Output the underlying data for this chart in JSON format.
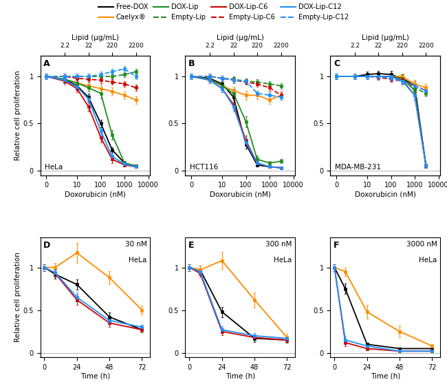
{
  "legend_entries": [
    {
      "label": "Free-DOX",
      "color": "#000000",
      "ls": "-",
      "lw": 1.5
    },
    {
      "label": "Caelyx®",
      "color": "#FF8C00",
      "ls": "-",
      "lw": 1.5
    },
    {
      "label": "DOX-Lip",
      "color": "#228B22",
      "ls": "-",
      "lw": 1.5
    },
    {
      "label": "Empty-Lip",
      "color": "#228B22",
      "ls": "--",
      "lw": 1.5
    },
    {
      "label": "DOX-Lip-C6",
      "color": "#CC0000",
      "ls": "-",
      "lw": 1.5
    },
    {
      "label": "Empty-Lip-C6",
      "color": "#CC0000",
      "ls": "--",
      "lw": 1.5
    },
    {
      "label": "DOX-Lip-C12",
      "color": "#1E90FF",
      "ls": "-",
      "lw": 1.5
    },
    {
      "label": "Empty-Lip-C12",
      "color": "#1E90FF",
      "ls": "--",
      "lw": 1.5
    }
  ],
  "top_panels": {
    "A": {
      "title": "HeLa",
      "Free_DOX": [
        1.0,
        0.97,
        0.9,
        0.78,
        0.5,
        0.22,
        0.08,
        0.05
      ],
      "Caelyx": [
        1.0,
        0.97,
        0.93,
        0.9,
        0.87,
        0.84,
        0.8,
        0.75
      ],
      "DOX_Lip": [
        1.0,
        0.97,
        0.93,
        0.88,
        0.82,
        0.38,
        0.08,
        0.05
      ],
      "Empty_Lip": [
        1.0,
        1.0,
        1.0,
        1.0,
        1.0,
        1.0,
        1.02,
        1.05
      ],
      "DOX_Lip_C6": [
        1.0,
        0.95,
        0.87,
        0.68,
        0.35,
        0.12,
        0.06,
        0.04
      ],
      "Empty_Lip_C6": [
        1.0,
        1.0,
        0.98,
        0.97,
        0.96,
        0.94,
        0.92,
        0.88
      ],
      "DOX_Lip_C12": [
        1.0,
        0.96,
        0.89,
        0.76,
        0.42,
        0.15,
        0.07,
        0.04
      ],
      "Empty_Lip_C12": [
        1.0,
        1.0,
        1.0,
        1.0,
        1.02,
        1.05,
        1.08,
        1.0
      ],
      "err_Free_DOX": [
        0.03,
        0.03,
        0.03,
        0.04,
        0.04,
        0.03,
        0.02,
        0.01
      ],
      "err_Caelyx": [
        0.03,
        0.03,
        0.03,
        0.04,
        0.04,
        0.04,
        0.04,
        0.04
      ],
      "err_DOX_Lip": [
        0.03,
        0.03,
        0.03,
        0.04,
        0.05,
        0.05,
        0.02,
        0.01
      ],
      "err_Empty_Lip": [
        0.03,
        0.03,
        0.03,
        0.03,
        0.03,
        0.03,
        0.03,
        0.03
      ],
      "err_DOX_Lip_C6": [
        0.03,
        0.03,
        0.04,
        0.05,
        0.05,
        0.04,
        0.02,
        0.01
      ],
      "err_Empty_Lip_C6": [
        0.03,
        0.03,
        0.03,
        0.03,
        0.03,
        0.03,
        0.03,
        0.03
      ],
      "err_DOX_Lip_C12": [
        0.03,
        0.03,
        0.03,
        0.04,
        0.05,
        0.04,
        0.02,
        0.01
      ],
      "err_Empty_Lip_C12": [
        0.03,
        0.03,
        0.03,
        0.03,
        0.03,
        0.03,
        0.03,
        0.03
      ]
    },
    "B": {
      "title": "HCT116",
      "Free_DOX": [
        1.0,
        0.98,
        0.92,
        0.78,
        0.28,
        0.06,
        0.04,
        0.03
      ],
      "Caelyx": [
        1.0,
        0.97,
        0.9,
        0.85,
        0.8,
        0.8,
        0.75,
        0.8
      ],
      "DOX_Lip": [
        1.0,
        0.97,
        0.9,
        0.82,
        0.52,
        0.12,
        0.08,
        0.1
      ],
      "Empty_Lip": [
        1.0,
        1.0,
        0.98,
        0.97,
        0.95,
        0.94,
        0.92,
        0.9
      ],
      "DOX_Lip_C6": [
        1.0,
        0.96,
        0.87,
        0.7,
        0.32,
        0.08,
        0.04,
        0.03
      ],
      "Empty_Lip_C6": [
        1.0,
        1.0,
        0.98,
        0.96,
        0.94,
        0.92,
        0.88,
        0.8
      ],
      "DOX_Lip_C12": [
        1.0,
        0.96,
        0.87,
        0.68,
        0.3,
        0.08,
        0.04,
        0.03
      ],
      "Empty_Lip_C12": [
        1.0,
        1.0,
        0.98,
        0.96,
        0.95,
        0.82,
        0.8,
        0.78
      ],
      "err_Free_DOX": [
        0.03,
        0.03,
        0.04,
        0.05,
        0.05,
        0.02,
        0.01,
        0.01
      ],
      "err_Caelyx": [
        0.03,
        0.03,
        0.04,
        0.04,
        0.05,
        0.04,
        0.04,
        0.05
      ],
      "err_DOX_Lip": [
        0.03,
        0.03,
        0.04,
        0.05,
        0.06,
        0.04,
        0.02,
        0.02
      ],
      "err_Empty_Lip": [
        0.03,
        0.03,
        0.03,
        0.03,
        0.03,
        0.03,
        0.03,
        0.03
      ],
      "err_DOX_Lip_C6": [
        0.03,
        0.03,
        0.04,
        0.05,
        0.05,
        0.02,
        0.01,
        0.01
      ],
      "err_Empty_Lip_C6": [
        0.03,
        0.03,
        0.03,
        0.03,
        0.03,
        0.03,
        0.03,
        0.03
      ],
      "err_DOX_Lip_C12": [
        0.03,
        0.03,
        0.04,
        0.05,
        0.05,
        0.02,
        0.01,
        0.01
      ],
      "err_Empty_Lip_C12": [
        0.03,
        0.03,
        0.03,
        0.03,
        0.03,
        0.03,
        0.03,
        0.03
      ]
    },
    "C": {
      "title": "MDA-MB-231",
      "Free_DOX": [
        1.0,
        1.0,
        1.02,
        1.03,
        1.02,
        0.98,
        0.9,
        0.05
      ],
      "Caelyx": [
        1.0,
        1.0,
        1.0,
        1.0,
        1.0,
        1.0,
        0.92,
        0.88
      ],
      "DOX_Lip": [
        1.0,
        1.0,
        1.0,
        1.0,
        1.0,
        0.98,
        0.85,
        0.05
      ],
      "Empty_Lip": [
        1.0,
        1.0,
        1.0,
        1.0,
        0.98,
        0.95,
        0.88,
        0.82
      ],
      "DOX_Lip_C6": [
        1.0,
        1.0,
        1.0,
        1.0,
        1.0,
        0.96,
        0.8,
        0.05
      ],
      "Empty_Lip_C6": [
        1.0,
        1.0,
        1.0,
        0.99,
        0.97,
        0.95,
        0.9,
        0.85
      ],
      "DOX_Lip_C12": [
        1.0,
        1.0,
        1.0,
        1.0,
        1.0,
        0.95,
        0.8,
        0.05
      ],
      "Empty_Lip_C12": [
        1.0,
        1.0,
        1.0,
        1.0,
        0.98,
        0.95,
        0.9,
        0.85
      ],
      "err_Free_DOX": [
        0.03,
        0.03,
        0.03,
        0.03,
        0.04,
        0.04,
        0.05,
        0.02
      ],
      "err_Caelyx": [
        0.03,
        0.03,
        0.03,
        0.03,
        0.03,
        0.03,
        0.04,
        0.04
      ],
      "err_DOX_Lip": [
        0.03,
        0.03,
        0.03,
        0.03,
        0.03,
        0.04,
        0.05,
        0.02
      ],
      "err_Empty_Lip": [
        0.03,
        0.03,
        0.03,
        0.03,
        0.03,
        0.03,
        0.03,
        0.03
      ],
      "err_DOX_Lip_C6": [
        0.03,
        0.03,
        0.03,
        0.03,
        0.03,
        0.04,
        0.05,
        0.02
      ],
      "err_Empty_Lip_C6": [
        0.03,
        0.03,
        0.03,
        0.03,
        0.03,
        0.03,
        0.03,
        0.03
      ],
      "err_DOX_Lip_C12": [
        0.03,
        0.03,
        0.03,
        0.03,
        0.03,
        0.04,
        0.05,
        0.02
      ],
      "err_Empty_Lip_C12": [
        0.03,
        0.03,
        0.03,
        0.03,
        0.03,
        0.03,
        0.03,
        0.03
      ]
    }
  },
  "bottom_panels": {
    "D": {
      "dose": "30 nM",
      "title": "HeLa",
      "time_x": [
        0,
        8,
        24,
        48,
        72
      ],
      "Free_DOX": [
        1.0,
        0.92,
        0.8,
        0.42,
        0.27
      ],
      "Caelyx": [
        1.0,
        1.0,
        1.17,
        0.88,
        0.5
      ],
      "DOX_Lip_C6": [
        1.0,
        0.93,
        0.62,
        0.35,
        0.27
      ],
      "DOX_Lip_C12": [
        1.0,
        0.94,
        0.65,
        0.38,
        0.3
      ],
      "err_Free_DOX": [
        0.04,
        0.05,
        0.06,
        0.05,
        0.03
      ],
      "err_Caelyx": [
        0.04,
        0.05,
        0.12,
        0.08,
        0.05
      ],
      "err_DOX_Lip_C6": [
        0.04,
        0.05,
        0.06,
        0.05,
        0.03
      ],
      "err_DOX_Lip_C12": [
        0.04,
        0.05,
        0.06,
        0.05,
        0.03
      ]
    },
    "E": {
      "dose": "300 nM",
      "title": "HeLa",
      "time_x": [
        0,
        8,
        24,
        48,
        72
      ],
      "Free_DOX": [
        1.0,
        0.97,
        0.48,
        0.17,
        0.15
      ],
      "Caelyx": [
        1.0,
        0.97,
        1.08,
        0.62,
        0.18
      ],
      "DOX_Lip_C6": [
        1.0,
        0.93,
        0.25,
        0.18,
        0.15
      ],
      "DOX_Lip_C12": [
        1.0,
        0.95,
        0.27,
        0.2,
        0.17
      ],
      "err_Free_DOX": [
        0.04,
        0.05,
        0.06,
        0.04,
        0.03
      ],
      "err_Caelyx": [
        0.04,
        0.05,
        0.1,
        0.09,
        0.04
      ],
      "err_DOX_Lip_C6": [
        0.04,
        0.04,
        0.04,
        0.03,
        0.02
      ],
      "err_DOX_Lip_C12": [
        0.04,
        0.04,
        0.04,
        0.03,
        0.02
      ]
    },
    "F": {
      "dose": "3000 nM",
      "title": "HeLa",
      "time_x": [
        0,
        8,
        24,
        48,
        72
      ],
      "Free_DOX": [
        1.0,
        0.75,
        0.1,
        0.05,
        0.05
      ],
      "Caelyx": [
        1.0,
        0.95,
        0.48,
        0.25,
        0.08
      ],
      "DOX_Lip_C6": [
        1.0,
        0.12,
        0.05,
        0.02,
        0.02
      ],
      "DOX_Lip_C12": [
        1.0,
        0.15,
        0.08,
        0.02,
        0.02
      ],
      "err_Free_DOX": [
        0.04,
        0.06,
        0.02,
        0.01,
        0.01
      ],
      "err_Caelyx": [
        0.04,
        0.05,
        0.08,
        0.07,
        0.02
      ],
      "err_DOX_Lip_C6": [
        0.04,
        0.04,
        0.02,
        0.01,
        0.01
      ],
      "err_DOX_Lip_C12": [
        0.04,
        0.04,
        0.02,
        0.01,
        0.01
      ]
    }
  },
  "dox_x_plot": [
    0.5,
    3,
    10,
    30,
    100,
    300,
    1000,
    3000
  ],
  "colors": {
    "Free_DOX": "#000000",
    "Caelyx": "#FF8C00",
    "DOX_Lip": "#228B22",
    "Empty_Lip": "#228B22",
    "DOX_Lip_C6": "#CC0000",
    "Empty_Lip_C6": "#CC0000",
    "DOX_Lip_C12": "#1E90FF",
    "Empty_Lip_C12": "#1E90FF"
  },
  "ls_map": {
    "Free_DOX": "-",
    "Caelyx": "-",
    "DOX_Lip": "-",
    "Empty_Lip": "--",
    "DOX_Lip_C6": "-",
    "Empty_Lip_C6": "--",
    "DOX_Lip_C12": "-",
    "Empty_Lip_C12": "--"
  }
}
